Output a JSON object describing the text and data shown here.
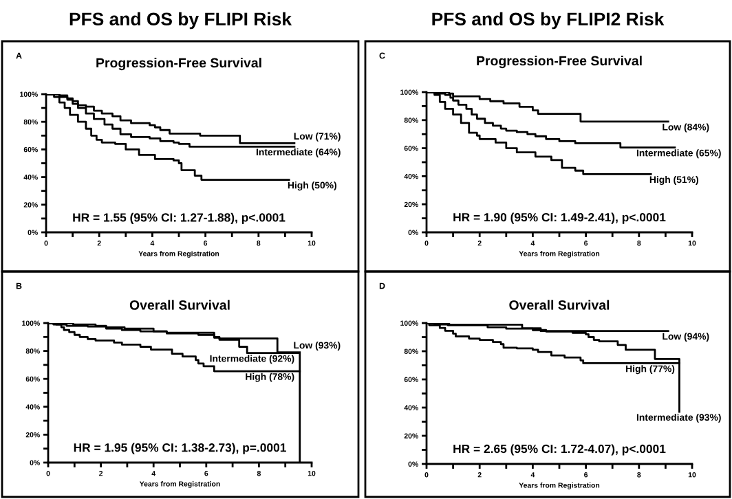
{
  "chart_data": [
    {
      "type": "step",
      "title": "PFS and OS by FLIPI Risk",
      "subtitle": "Progression-Free Survival",
      "xlabel": "Years from Registration",
      "xlim": [
        0,
        10
      ],
      "xticks": [
        0,
        {
          "value": 1,
          "label": null
        },
        2,
        {
          "value": 3,
          "label": null
        },
        4,
        {
          "value": 5,
          "label": null
        },
        6,
        {
          "value": 7,
          "label": null
        },
        8,
        {
          "value": 9,
          "label": null
        },
        10
      ],
      "ylim": [
        0,
        100
      ],
      "yticks": [
        {
          "value": 0,
          "label": "0%"
        },
        {
          "value": 10,
          "label": null
        },
        {
          "value": 20,
          "label": "20%"
        },
        {
          "value": 30,
          "label": null
        },
        {
          "value": 40,
          "label": "40%"
        },
        {
          "value": 50,
          "label": null
        },
        {
          "value": 60,
          "label": "60%"
        },
        {
          "value": 70,
          "label": null
        },
        {
          "value": 80,
          "label": "80%"
        },
        {
          "value": 90,
          "label": null
        },
        {
          "value": 100,
          "label": "100%"
        }
      ],
      "series": [
        {
          "name": "Low (71%)",
          "color": "#000000",
          "x": [
            0,
            0.5,
            0.8,
            1.0,
            1.2,
            1.5,
            1.8,
            2.1,
            2.5,
            2.8,
            3.2,
            3.9,
            4.1,
            4.3,
            4.65,
            5.8,
            7.3,
            9.35
          ],
          "values": [
            100,
            99,
            97,
            95,
            92,
            91,
            88,
            86,
            84,
            81,
            79,
            77.5,
            76,
            74,
            71.5,
            70,
            64.5,
            64.5
          ]
        },
        {
          "name": "Intermediate (64%)",
          "color": "#000000",
          "x": [
            0,
            0.5,
            0.8,
            1.0,
            1.2,
            1.5,
            1.8,
            2.2,
            2.5,
            2.8,
            3.2,
            3.9,
            4.3,
            4.8,
            5.0,
            5.4,
            9.35
          ],
          "values": [
            100,
            98,
            96,
            93,
            90,
            86,
            82,
            78,
            75,
            71,
            69,
            68,
            66,
            65,
            64,
            62,
            62
          ]
        },
        {
          "name": "High (50%)",
          "color": "#000000",
          "x": [
            0,
            0.3,
            0.5,
            0.7,
            0.9,
            1.2,
            1.5,
            1.7,
            1.9,
            2.1,
            2.6,
            3.0,
            3.5,
            4.1,
            4.8,
            5.0,
            5.1,
            5.6,
            5.85,
            9.15
          ],
          "values": [
            100,
            98,
            94,
            90,
            85,
            80,
            75,
            70,
            67,
            65,
            64,
            60,
            56,
            53,
            52,
            50,
            45,
            41,
            38,
            38
          ]
        }
      ],
      "annotations": [
        "A",
        "HR = 1.55 (95% CI: 1.27-1.88), p<.0001"
      ]
    },
    {
      "type": "step",
      "title": "Overall Survival",
      "xlabel": "Years from Registration",
      "xlim": [
        0,
        10
      ],
      "xticks": [
        0,
        {
          "value": 1,
          "label": null
        },
        2,
        {
          "value": 3,
          "label": null
        },
        4,
        {
          "value": 5,
          "label": null
        },
        6,
        {
          "value": 7,
          "label": null
        },
        8,
        {
          "value": 9,
          "label": null
        },
        10
      ],
      "ylim": [
        0,
        100
      ],
      "yticks": [
        {
          "value": 0,
          "label": "0%"
        },
        {
          "value": 10,
          "label": null
        },
        {
          "value": 20,
          "label": "20%"
        },
        {
          "value": 30,
          "label": null
        },
        {
          "value": 40,
          "label": "40%"
        },
        {
          "value": 50,
          "label": null
        },
        {
          "value": 60,
          "label": "60%"
        },
        {
          "value": 70,
          "label": null
        },
        {
          "value": 80,
          "label": "80%"
        },
        {
          "value": 90,
          "label": null
        },
        {
          "value": 100,
          "label": "100%"
        }
      ],
      "series": [
        {
          "name": "Low (93%)",
          "color": "#000000",
          "x": [
            0,
            0.95,
            1.8,
            2.2,
            2.9,
            4.0,
            4.5,
            6.3,
            6.5,
            8.7,
            9.55
          ],
          "values": [
            100,
            99,
            98,
            97,
            96,
            94,
            93,
            90,
            89,
            79,
            79
          ]
        },
        {
          "name": "Intermediate (92%)",
          "color": "#000000",
          "x": [
            0,
            0.3,
            0.7,
            1.5,
            2.2,
            2.8,
            3.5,
            4.5,
            5.7,
            6.3,
            6.5,
            7.25,
            7.55,
            9.55
          ],
          "values": [
            100,
            99,
            98,
            97.5,
            96,
            95,
            94,
            92.5,
            91.5,
            89.5,
            88,
            83,
            78.5,
            0
          ]
        },
        {
          "name": "High (78%)",
          "color": "#000000",
          "x": [
            0,
            0.2,
            0.5,
            0.6,
            0.8,
            1.0,
            1.2,
            1.5,
            1.8,
            2.5,
            2.8,
            3.5,
            3.9,
            4.7,
            5.1,
            5.6,
            5.7,
            5.9,
            6.3,
            9.55
          ],
          "values": [
            100,
            99,
            97,
            95,
            93.5,
            91.5,
            90,
            88.5,
            87.5,
            86,
            84.5,
            83,
            81,
            78,
            76,
            73.5,
            71,
            69,
            65.5,
            65.5
          ]
        }
      ],
      "annotations": [
        "B",
        "HR = 1.95 (95% CI: 1.38-2.73), p=.0001"
      ]
    },
    {
      "type": "step",
      "title": "PFS and OS by FLIPI2 Risk",
      "subtitle": "Progression-Free Survival",
      "xlabel": "Years from Registration",
      "xlim": [
        0,
        10
      ],
      "xticks": [
        0,
        {
          "value": 1,
          "label": null
        },
        2,
        {
          "value": 3,
          "label": null
        },
        4,
        {
          "value": 5,
          "label": null
        },
        6,
        {
          "value": 7,
          "label": null
        },
        8,
        {
          "value": 9,
          "label": null
        },
        10
      ],
      "ylim": [
        0,
        100
      ],
      "yticks": [
        {
          "value": 0,
          "label": "0%"
        },
        {
          "value": 10,
          "label": null
        },
        {
          "value": 20,
          "label": "20%"
        },
        {
          "value": 30,
          "label": null
        },
        {
          "value": 40,
          "label": "40%"
        },
        {
          "value": 50,
          "label": null
        },
        {
          "value": 60,
          "label": "60%"
        },
        {
          "value": 70,
          "label": null
        },
        {
          "value": 80,
          "label": "80%"
        },
        {
          "value": 90,
          "label": null
        },
        {
          "value": 100,
          "label": "100%"
        }
      ],
      "series": [
        {
          "name": "Low (84%)",
          "color": "#000000",
          "x": [
            0,
            0.85,
            1.0,
            2.0,
            2.4,
            2.9,
            3.5,
            4.0,
            4.2,
            5.8,
            9.1
          ],
          "values": [
            100,
            99,
            97,
            95,
            93.5,
            92,
            89.5,
            87,
            84.5,
            79,
            79
          ]
        },
        {
          "name": "Intermediate (65%)",
          "color": "#000000",
          "x": [
            0,
            0.3,
            0.7,
            0.9,
            1.0,
            1.2,
            1.5,
            1.7,
            1.9,
            2.2,
            2.5,
            2.8,
            3.0,
            3.4,
            3.8,
            4.1,
            4.5,
            5.0,
            5.6,
            7.3,
            9.35
          ],
          "values": [
            100,
            99,
            98,
            96,
            94,
            91,
            88,
            84,
            81,
            78,
            76,
            74,
            72.5,
            71.5,
            70,
            68.5,
            66.5,
            65,
            63.5,
            60.5,
            60.5
          ]
        },
        {
          "name": "High (51%)",
          "color": "#000000",
          "x": [
            0,
            0.3,
            0.5,
            0.7,
            1.0,
            1.3,
            1.6,
            1.9,
            2.0,
            2.6,
            3.0,
            3.4,
            4.1,
            4.7,
            5.1,
            5.6,
            5.9,
            8.45
          ],
          "values": [
            100,
            98,
            93,
            88,
            84,
            78,
            71,
            69,
            66.5,
            64,
            60,
            57,
            54,
            51.5,
            46,
            44,
            41.5,
            41.5
          ]
        }
      ],
      "annotations": [
        "C",
        "HR = 1.90 (95% CI: 1.49-2.41), p<.0001"
      ]
    },
    {
      "type": "step",
      "title": "Overall Survival",
      "xlabel": "Years from Registration",
      "xlim": [
        0,
        10
      ],
      "xticks": [
        0,
        {
          "value": 1,
          "label": null
        },
        2,
        {
          "value": 3,
          "label": null
        },
        4,
        {
          "value": 5,
          "label": null
        },
        6,
        {
          "value": 7,
          "label": null
        },
        8,
        {
          "value": 9,
          "label": null
        },
        10
      ],
      "ylim": [
        0,
        100
      ],
      "yticks": [
        {
          "value": 0,
          "label": "0%"
        },
        {
          "value": 10,
          "label": null
        },
        {
          "value": 20,
          "label": "20%"
        },
        {
          "value": 30,
          "label": null
        },
        {
          "value": 40,
          "label": "40%"
        },
        {
          "value": 50,
          "label": null
        },
        {
          "value": 60,
          "label": "60%"
        },
        {
          "value": 70,
          "label": null
        },
        {
          "value": 80,
          "label": "80%"
        },
        {
          "value": 90,
          "label": null
        },
        {
          "value": 100,
          "label": "100%"
        }
      ],
      "series": [
        {
          "name": "Low (94%)",
          "color": "#000000",
          "x": [
            0,
            0.85,
            3.6,
            4.3,
            9.1
          ],
          "values": [
            100,
            98.8,
            96.3,
            94.3,
            94.3
          ]
        },
        {
          "name": "Intermediate (93%)",
          "color": "#000000",
          "x": [
            0,
            0.3,
            0.8,
            2.3,
            3.0,
            4.0,
            4.5,
            5.5,
            6.0,
            6.1,
            6.3,
            6.5,
            7.2,
            7.5,
            8.6,
            9.52
          ],
          "values": [
            100,
            99,
            98.5,
            97,
            96,
            95,
            94,
            93,
            92,
            90,
            88,
            87,
            84.5,
            81,
            74.5,
            37
          ]
        },
        {
          "name": "High (77%)",
          "color": "#000000",
          "x": [
            0,
            0.1,
            0.5,
            0.7,
            1.0,
            1.1,
            1.6,
            2.0,
            2.5,
            2.8,
            2.9,
            3.4,
            4.0,
            4.2,
            4.7,
            5.2,
            5.8,
            5.9,
            9.52
          ],
          "values": [
            100,
            98.5,
            96.5,
            94.5,
            92.5,
            90.5,
            89,
            88,
            86.5,
            85,
            82.5,
            82,
            81,
            79.5,
            77,
            75.5,
            73.5,
            71.5,
            71.5
          ]
        }
      ],
      "annotations": [
        "D",
        "HR = 2.65 (95% CI: 1.72-4.07), p<.0001"
      ]
    }
  ]
}
